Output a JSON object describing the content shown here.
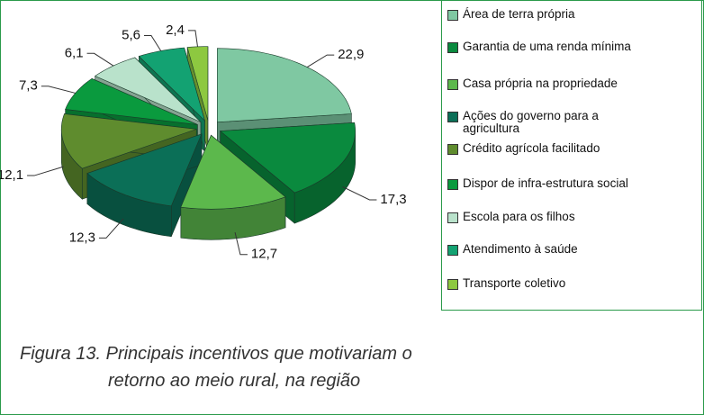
{
  "chart_data": {
    "type": "pie3d",
    "categories": [
      "Área de terra própria",
      "Garantia de uma renda mínima",
      "Casa própria na propriedade",
      "Ações do governo para  a agricultura",
      "Crédito agrícola facilitado",
      "Dispor de infra-estrutura social",
      "Escola para os filhos",
      "Atendimento à saúde",
      "Transporte coletivo"
    ],
    "values": [
      22.9,
      17.3,
      12.7,
      12.3,
      12.1,
      7.3,
      6.1,
      5.6,
      2.4
    ],
    "value_labels": [
      "22,9",
      "17,3",
      "12,7",
      "12,3",
      "12,1",
      "7,3",
      "6,1",
      "5,6",
      "2,4"
    ],
    "colors": [
      "#7fc8a2",
      "#0a8a3e",
      "#5cb84c",
      "#0b6f57",
      "#5f8c2e",
      "#0a9a3e",
      "#b9e2cb",
      "#13a272",
      "#8dc840"
    ],
    "caption_lines": [
      "Figura 13. Principais incentivos que motivariam  o",
      "retorno ao meio rural, na região"
    ]
  }
}
